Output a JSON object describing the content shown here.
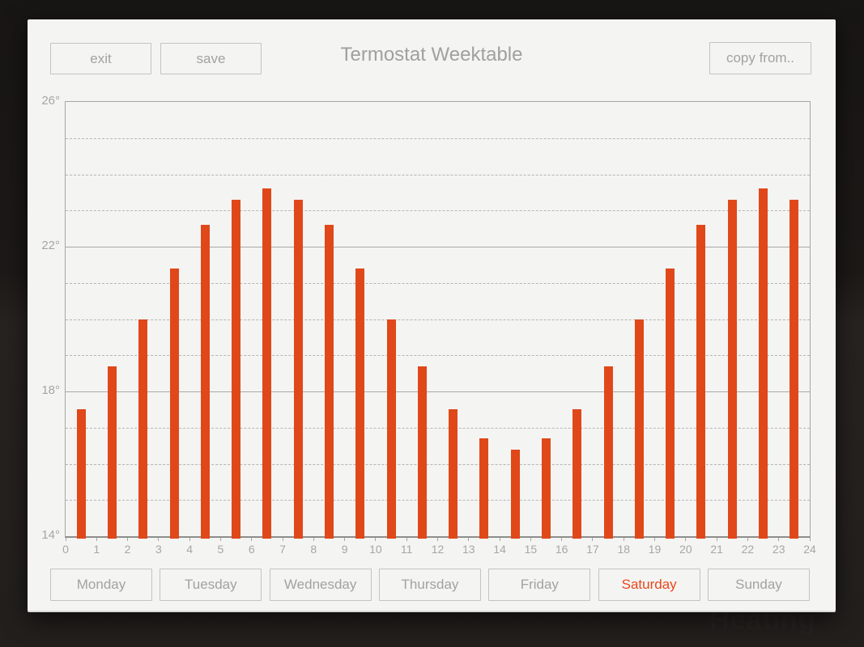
{
  "header": {
    "exit_label": "exit",
    "save_label": "save",
    "title": "Termostat Weektable",
    "copy_from_label": "copy from.."
  },
  "chart_data": {
    "type": "bar",
    "title": "Termostat Weektable",
    "x_hours": [
      0,
      1,
      2,
      3,
      4,
      5,
      6,
      7,
      8,
      9,
      10,
      11,
      12,
      13,
      14,
      15,
      16,
      17,
      18,
      19,
      20,
      21,
      22,
      23
    ],
    "values": [
      17.5,
      18.7,
      20.0,
      21.4,
      22.6,
      23.3,
      23.6,
      23.3,
      22.6,
      21.4,
      20.0,
      18.7,
      17.5,
      16.7,
      16.4,
      16.7,
      17.5,
      18.7,
      20.0,
      21.4,
      22.6,
      23.3,
      23.6,
      23.3
    ],
    "y_unit": "°",
    "ylim": [
      14,
      26
    ],
    "xlim": [
      0,
      24
    ],
    "ytick_labels": [
      {
        "label": "26°",
        "value": 26
      },
      {
        "label": "22°",
        "value": 22
      },
      {
        "label": "18°",
        "value": 18
      },
      {
        "label": "14°",
        "value": 14
      }
    ],
    "xtick_labels": [
      "0",
      "1",
      "2",
      "3",
      "4",
      "5",
      "6",
      "7",
      "8",
      "9",
      "10",
      "11",
      "12",
      "13",
      "14",
      "15",
      "16",
      "17",
      "18",
      "19",
      "20",
      "21",
      "22",
      "23",
      "24"
    ],
    "grid": {
      "major_step": 4,
      "major_style": "solid",
      "minor_step": 1,
      "minor_style": "dashed"
    },
    "legend": "none",
    "bar_color": "#e0481a"
  },
  "days": {
    "items": [
      {
        "label": "Monday",
        "selected": false
      },
      {
        "label": "Tuesday",
        "selected": false
      },
      {
        "label": "Wednesday",
        "selected": false
      },
      {
        "label": "Thursday",
        "selected": false
      },
      {
        "label": "Friday",
        "selected": false
      },
      {
        "label": "Saturday",
        "selected": true
      },
      {
        "label": "Sunday",
        "selected": false
      }
    ]
  },
  "background": {
    "watermark_text": "Heating"
  },
  "colors": {
    "accent_orange": "#e0481a",
    "selected_day_text": "#e8481c",
    "card_background": "#f4f4f3",
    "muted_text": "#a2a2a0",
    "grid_major": "#a8a8a6",
    "grid_minor": "#b6b6b4",
    "page_background": "#1c1917"
  }
}
